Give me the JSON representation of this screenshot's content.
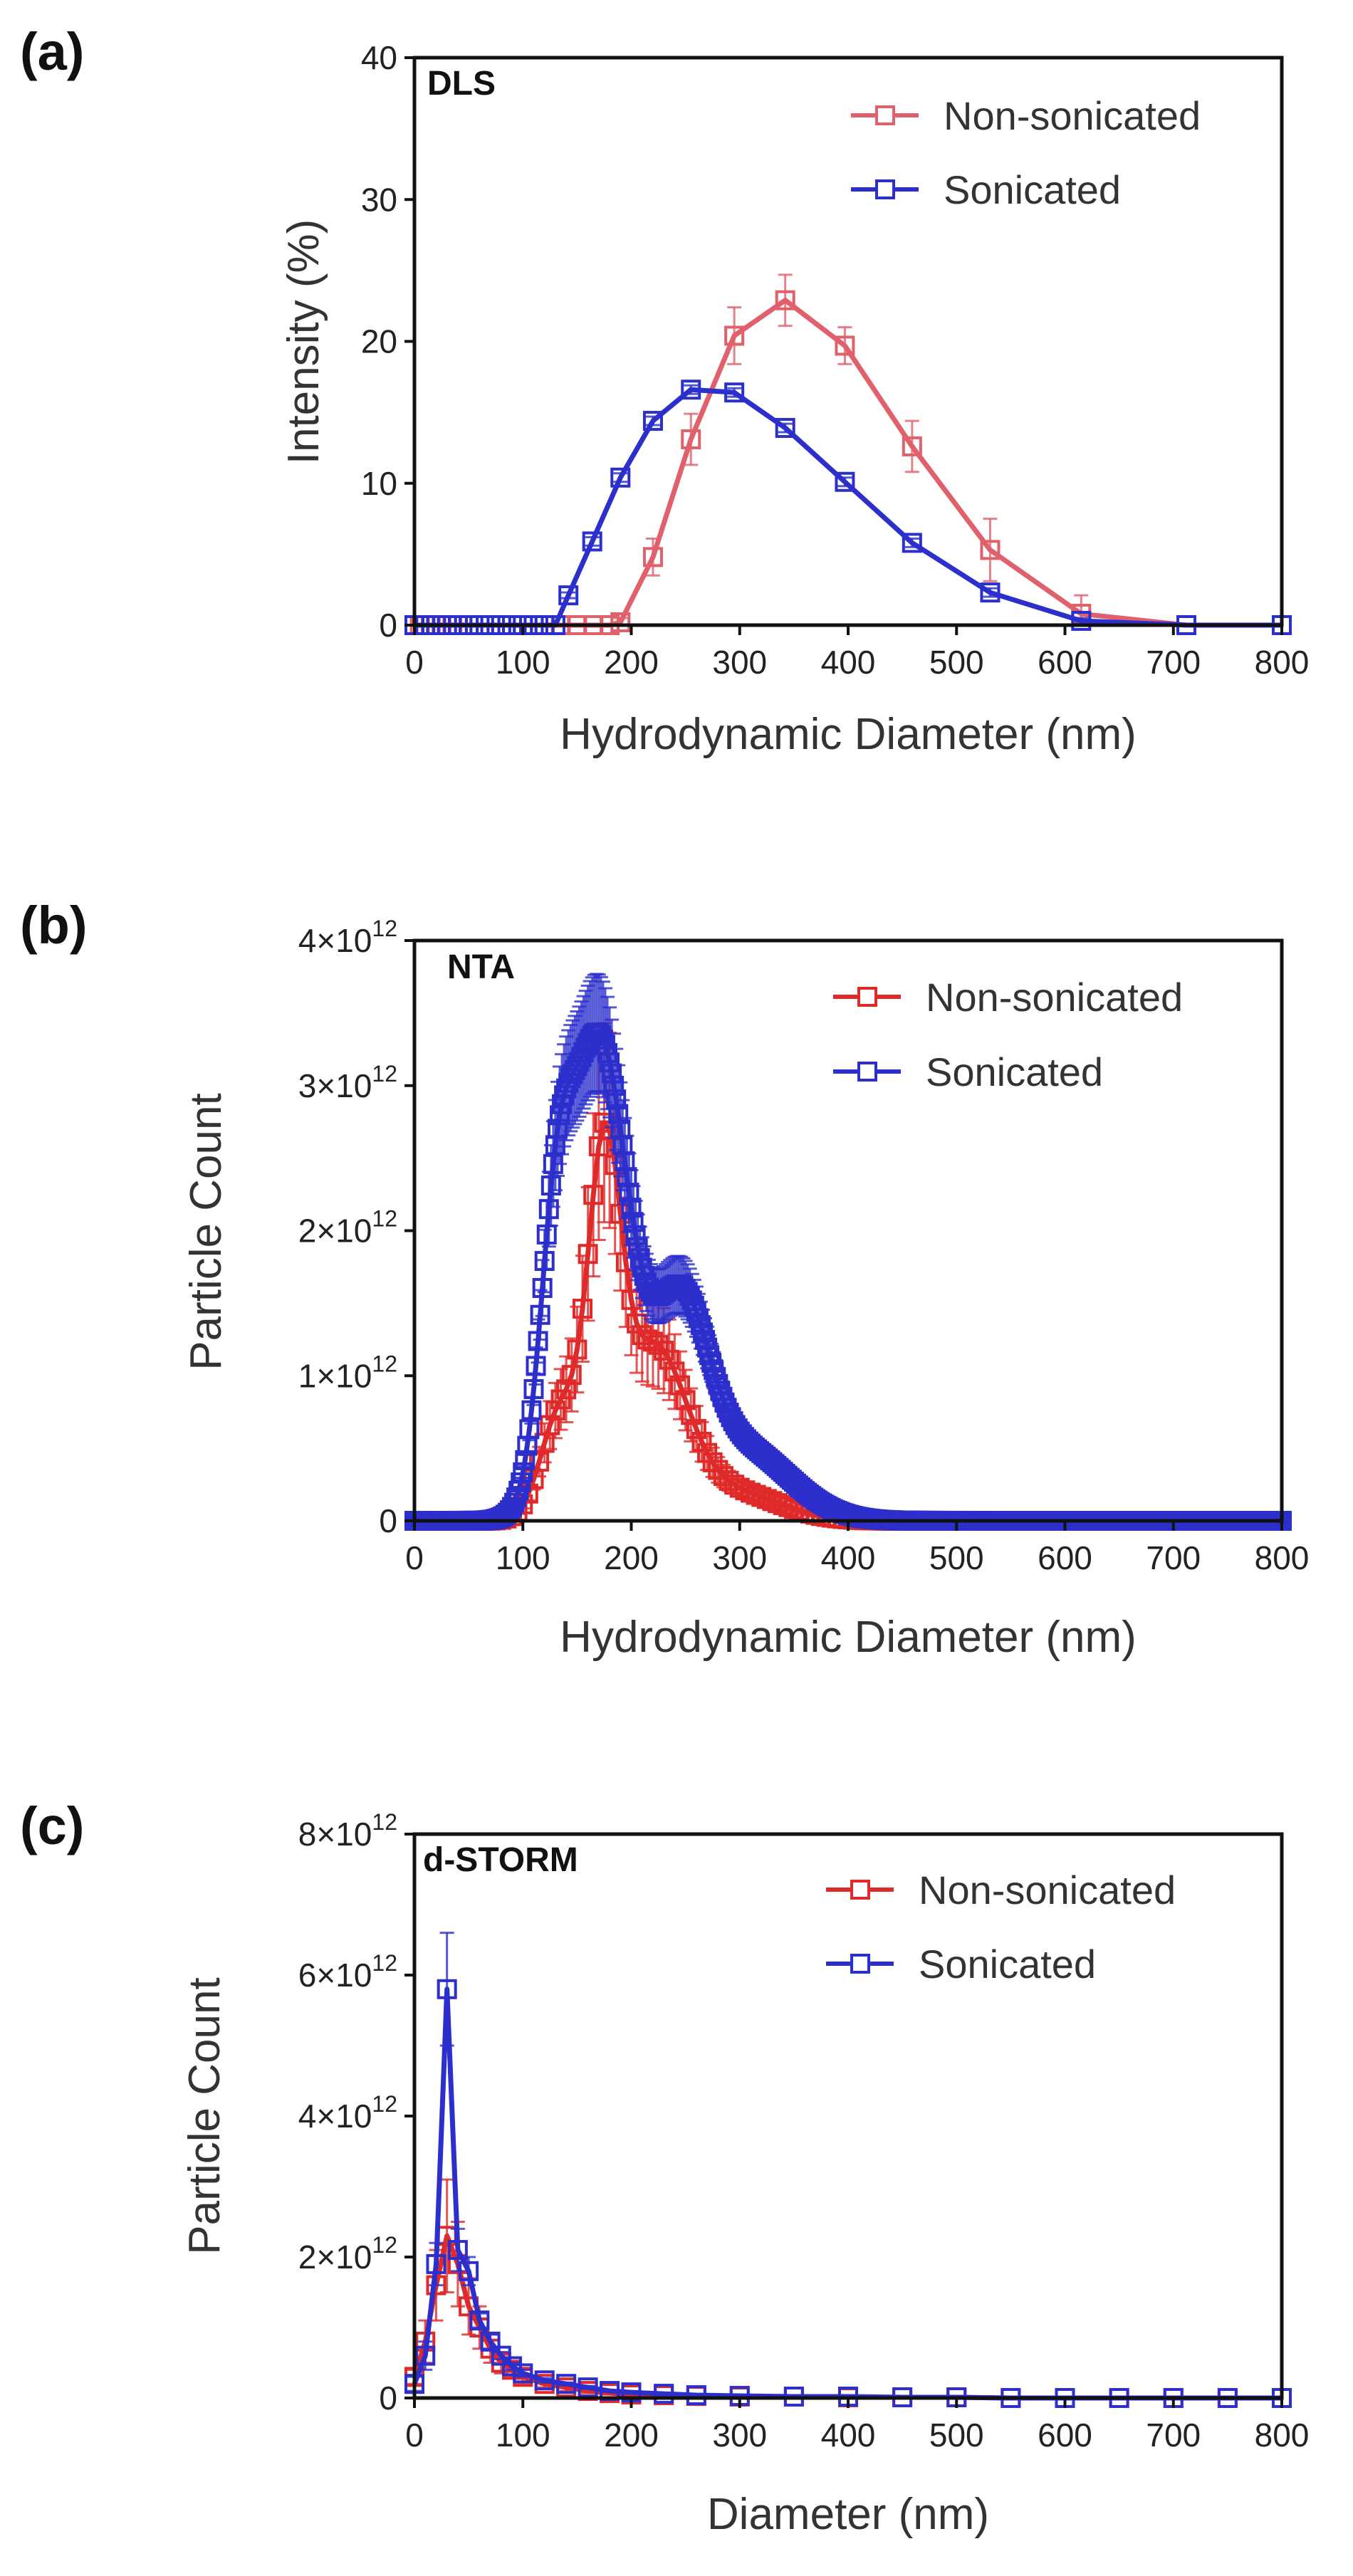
{
  "chart_data": [
    {
      "panel": "(a)",
      "type": "line",
      "title": "DLS",
      "xlabel": "Hydrodynamic Diameter (nm)",
      "ylabel": "Intensity (%)",
      "xlim": [
        0,
        800
      ],
      "ylim": [
        0,
        40
      ],
      "xticks": [
        "0",
        "100",
        "200",
        "300",
        "400",
        "500",
        "600",
        "700",
        "800"
      ],
      "yticks": [
        "0",
        "10",
        "20",
        "30",
        "40"
      ],
      "legend_position": "top-right",
      "series": [
        {
          "name": "Non-sonicated",
          "color": "#e0616b",
          "x": [
            0,
            5,
            10,
            15,
            20,
            25,
            30,
            35,
            40,
            50,
            60,
            70,
            80,
            90,
            100,
            110,
            120,
            135,
            150,
            165,
            180,
            190,
            220,
            255,
            295,
            342,
            397,
            459,
            531,
            615,
            712,
            800
          ],
          "y": [
            0,
            0,
            0,
            0,
            0,
            0,
            0,
            0,
            0,
            0,
            0,
            0,
            0,
            0,
            0,
            0,
            0,
            0,
            0,
            0,
            0,
            0.2,
            4.8,
            13.1,
            20.4,
            22.9,
            19.7,
            12.6,
            5.3,
            0.8,
            0,
            0
          ],
          "err": [
            0,
            0,
            0,
            0,
            0,
            0,
            0,
            0,
            0,
            0,
            0,
            0,
            0,
            0,
            0,
            0,
            0,
            0,
            0,
            0,
            0,
            0.3,
            1.3,
            1.8,
            2.0,
            1.8,
            1.3,
            1.8,
            2.2,
            1.3,
            0,
            0
          ]
        },
        {
          "name": "Sonicated",
          "color": "#2c2fcc",
          "x": [
            0,
            10,
            20,
            30,
            40,
            50,
            60,
            70,
            80,
            90,
            100,
            110,
            120,
            130,
            142,
            164,
            190,
            220,
            255,
            295,
            342,
            397,
            459,
            531,
            615,
            712,
            800
          ],
          "y": [
            0,
            0,
            0,
            0,
            0,
            0,
            0,
            0,
            0,
            0,
            0,
            0,
            0,
            0,
            2.1,
            5.9,
            10.4,
            14.4,
            16.6,
            16.4,
            13.9,
            10.1,
            5.8,
            2.3,
            0.3,
            0,
            0
          ],
          "err": [
            0,
            0,
            0,
            0,
            0,
            0,
            0,
            0,
            0,
            0,
            0,
            0,
            0,
            0,
            0.2,
            0.3,
            0.3,
            0.3,
            0.3,
            0.3,
            0.3,
            0.3,
            0.3,
            0.3,
            0.2,
            0,
            0
          ]
        }
      ]
    },
    {
      "panel": "(b)",
      "type": "line",
      "title": "NTA",
      "xlabel": "Hydrodynamic Diameter (nm)",
      "ylabel": "Particle Count",
      "xlim": [
        0,
        800
      ],
      "ylim": [
        0,
        4000000000000.0
      ],
      "xticks": [
        "0",
        "100",
        "200",
        "300",
        "400",
        "500",
        "600",
        "700",
        "800"
      ],
      "yticks": [
        {
          "base": "0",
          "exp": ""
        },
        {
          "base": "1×10",
          "exp": "12"
        },
        {
          "base": "2×10",
          "exp": "12"
        },
        {
          "base": "3×10",
          "exp": "12"
        },
        {
          "base": "4×10",
          "exp": "12"
        }
      ],
      "legend_position": "top-right",
      "series": [
        {
          "name": "Non-sonicated",
          "color": "#e02a2a",
          "step": 5,
          "peaks": [
            {
              "center": 175,
              "height": 2300000000000.0,
              "width": 15
            },
            {
              "center": 135,
              "height": 750000000000.0,
              "width": 18
            },
            {
              "center": 220,
              "height": 1150000000000.0,
              "width": 30
            },
            {
              "center": 290,
              "height": 200000000000.0,
              "width": 45
            }
          ],
          "rel_err": 0.25
        },
        {
          "name": "Sonicated",
          "color": "#2c2fcc",
          "step": 2,
          "peaks": [
            {
              "center": 170,
              "height": 3300000000000.0,
              "width": 28
            },
            {
              "center": 130,
              "height": 1400000000000.0,
              "width": 15
            },
            {
              "center": 245,
              "height": 1300000000000.0,
              "width": 25
            },
            {
              "center": 300,
              "height": 500000000000.0,
              "width": 45
            }
          ],
          "rel_err": 0.12
        }
      ]
    },
    {
      "panel": "(c)",
      "type": "line",
      "title": "d-STORM",
      "xlabel": "Diameter (nm)",
      "ylabel": "Particle Count",
      "xlim": [
        0,
        800
      ],
      "ylim": [
        0,
        8000000000000.0
      ],
      "xticks": [
        "0",
        "100",
        "200",
        "300",
        "400",
        "500",
        "600",
        "700",
        "800"
      ],
      "yticks": [
        {
          "base": "0",
          "exp": ""
        },
        {
          "base": "2×10",
          "exp": "12"
        },
        {
          "base": "4×10",
          "exp": "12"
        },
        {
          "base": "6×10",
          "exp": "12"
        },
        {
          "base": "8×10",
          "exp": "12"
        }
      ],
      "legend_position": "top-right",
      "series": [
        {
          "name": "Non-sonicated",
          "color": "#e02a2a",
          "x": [
            0,
            10,
            20,
            30,
            40,
            50,
            60,
            70,
            80,
            90,
            100,
            120,
            140,
            160,
            180,
            200,
            230,
            260,
            300,
            350,
            400,
            450,
            500,
            550,
            600,
            650,
            700,
            750,
            800
          ],
          "y": [
            300000000000.0,
            800000000000.0,
            1600000000000.0,
            2300000000000.0,
            1900000000000.0,
            1300000000000.0,
            1000000000000.0,
            700000000000.0,
            500000000000.0,
            400000000000.0,
            300000000000.0,
            200000000000.0,
            150000000000.0,
            100000000000.0,
            70000000000.0,
            50000000000.0,
            40000000000.0,
            30000000000.0,
            20000000000.0,
            20000000000.0,
            10000000000.0,
            10000000000.0,
            10000000000.0,
            0,
            0,
            0,
            0,
            0,
            0
          ],
          "err": [
            100000000000.0,
            300000000000.0,
            500000000000.0,
            800000000000.0,
            600000000000.0,
            400000000000.0,
            300000000000.0,
            200000000000.0,
            150000000000.0,
            100000000000.0,
            100000000000.0,
            50000000000.0,
            50000000000.0,
            30000000000.0,
            20000000000.0,
            20000000000.0,
            10000000000.0,
            10000000000.0,
            0,
            0,
            0,
            0,
            0,
            0,
            0,
            0,
            0,
            0,
            0
          ]
        },
        {
          "name": "Sonicated",
          "color": "#2c2fcc",
          "x": [
            0,
            10,
            20,
            30,
            40,
            50,
            60,
            70,
            80,
            90,
            100,
            120,
            140,
            160,
            180,
            200,
            230,
            260,
            300,
            350,
            400,
            450,
            500,
            550,
            600,
            650,
            700,
            750,
            800
          ],
          "y": [
            200000000000.0,
            600000000000.0,
            1900000000000.0,
            5800000000000.0,
            2100000000000.0,
            1800000000000.0,
            1100000000000.0,
            800000000000.0,
            600000000000.0,
            450000000000.0,
            350000000000.0,
            250000000000.0,
            200000000000.0,
            150000000000.0,
            100000000000.0,
            80000000000.0,
            60000000000.0,
            40000000000.0,
            30000000000.0,
            20000000000.0,
            20000000000.0,
            10000000000.0,
            10000000000.0,
            0,
            0,
            0,
            0,
            0,
            0
          ],
          "err": [
            100000000000.0,
            200000000000.0,
            300000000000.0,
            800000000000.0,
            300000000000.0,
            200000000000.0,
            100000000000.0,
            100000000000.0,
            50000000000.0,
            50000000000.0,
            50000000000.0,
            30000000000.0,
            20000000000.0,
            20000000000.0,
            10000000000.0,
            10000000000.0,
            10000000000.0,
            0,
            0,
            0,
            0,
            0,
            0,
            0,
            0,
            0,
            0,
            0,
            0
          ]
        }
      ]
    }
  ]
}
